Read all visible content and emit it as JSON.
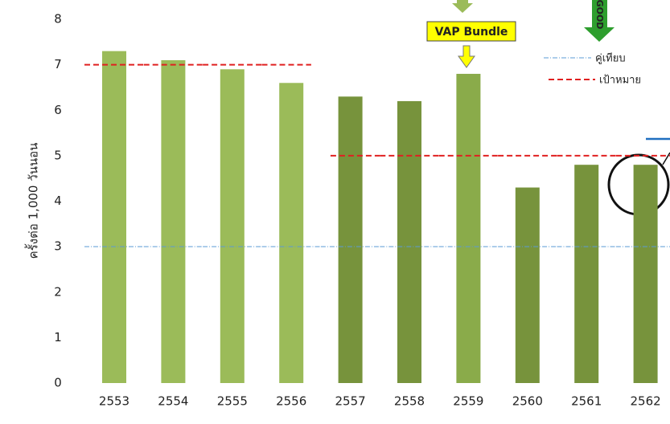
{
  "chart_data": {
    "type": "bar",
    "y_axis_label": "ครั้งต่อ 1,000 วันนอน",
    "categories": [
      "2553",
      "2554",
      "2555",
      "2556",
      "2557",
      "2558",
      "2559",
      "2560",
      "2561",
      "2562"
    ],
    "values": [
      7.3,
      7.1,
      6.9,
      6.6,
      6.3,
      6.2,
      6.8,
      4.3,
      4.8,
      4.8
    ],
    "colors": [
      "#9bbb59",
      "#9bbb59",
      "#9bbb59",
      "#9bbb59",
      "#77933c",
      "#77933c",
      "#8aab4a",
      "#77933c",
      "#77933c",
      "#77933c"
    ],
    "ylim": [
      0,
      8
    ],
    "yticks": [
      0,
      1,
      2,
      3,
      4,
      5,
      6,
      7,
      8
    ],
    "comparison": {
      "name": "คู่เทียบ",
      "color": "#5b9bd5",
      "values": [
        3,
        3,
        3,
        3,
        3,
        3,
        3,
        3,
        3,
        3
      ]
    },
    "target": {
      "name": "เป้าหมาย",
      "color": "#e02020",
      "values": [
        7,
        7,
        7,
        7,
        5,
        5,
        5,
        5,
        5,
        5
      ]
    },
    "annotations": [
      "VAP Bundle",
      "GOOD"
    ]
  }
}
